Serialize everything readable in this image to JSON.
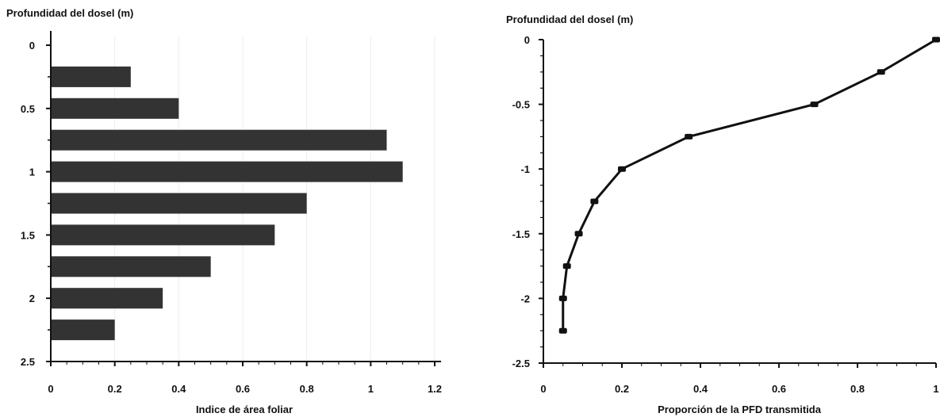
{
  "chart_data": [
    {
      "type": "bar",
      "orientation": "horizontal",
      "ylabel": "Profundidad del dosel (m)",
      "xlabel": "Indice de área foliar",
      "categories": [
        0.25,
        0.5,
        0.75,
        1.0,
        1.25,
        1.5,
        1.75,
        2.0,
        2.25
      ],
      "values": [
        0.25,
        0.4,
        1.05,
        1.1,
        0.8,
        0.7,
        0.5,
        0.35,
        0.2
      ],
      "xlim": [
        0,
        1.2
      ],
      "ylim": [
        0,
        2.5
      ],
      "y_inverted": true,
      "xticks": [
        "0",
        "0.2",
        "0.4",
        "0.6",
        "0.8",
        "1",
        "1.2"
      ],
      "yticks": [
        "0",
        "0.5",
        "1",
        "1.5",
        "2",
        "2.5"
      ],
      "bar_color": "#333333"
    },
    {
      "type": "line",
      "ylabel": "Profundidad del dosel (m)",
      "xlabel": "Proporción de la PFD transmitida",
      "x": [
        1.0,
        0.86,
        0.69,
        0.37,
        0.2,
        0.13,
        0.09,
        0.06,
        0.05,
        0.05
      ],
      "y": [
        0,
        -0.25,
        -0.5,
        -0.75,
        -1.0,
        -1.25,
        -1.5,
        -1.75,
        -2.0,
        -2.25
      ],
      "xlim": [
        0,
        1
      ],
      "ylim": [
        -2.5,
        0
      ],
      "xticks": [
        "0",
        "0.2",
        "0.4",
        "0.6",
        "0.8",
        "1"
      ],
      "yticks": [
        "0",
        "-0.5",
        "-1",
        "-1.5",
        "-2",
        "-2.5"
      ],
      "line_color": "#111111"
    }
  ]
}
